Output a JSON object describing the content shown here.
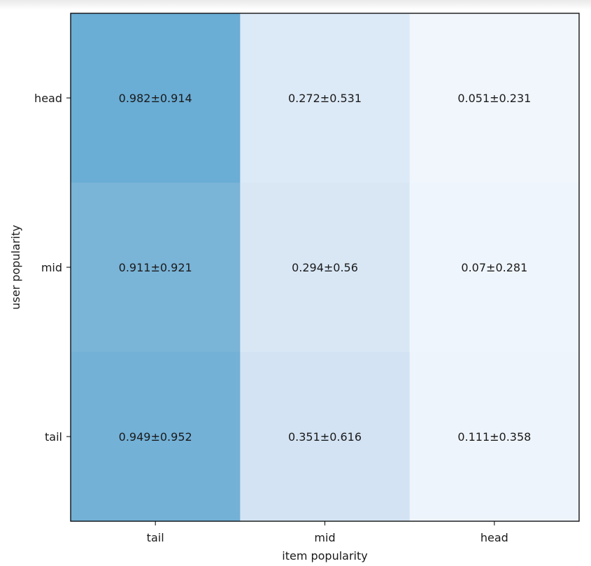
{
  "chart_data": {
    "type": "heatmap",
    "title": "",
    "xlabel": "item popularity",
    "ylabel": "user popularity",
    "x_categories": [
      "tail",
      "mid",
      "head"
    ],
    "y_categories": [
      "head",
      "mid",
      "tail"
    ],
    "values": [
      [
        0.982,
        0.272,
        0.051
      ],
      [
        0.911,
        0.294,
        0.07
      ],
      [
        0.949,
        0.351,
        0.111
      ]
    ],
    "errors": [
      [
        0.914,
        0.531,
        0.231
      ],
      [
        0.921,
        0.56,
        0.281
      ],
      [
        0.952,
        0.616,
        0.358
      ]
    ],
    "cell_labels": [
      [
        "0.982±0.914",
        "0.272±0.531",
        "0.051±0.231"
      ],
      [
        "0.911±0.921",
        "0.294±0.56",
        "0.07±0.281"
      ],
      [
        "0.949±0.952",
        "0.351±0.616",
        "0.111±0.358"
      ]
    ],
    "cell_colors": [
      [
        "#6aadd5",
        "#dce9f6",
        "#f1f6fd"
      ],
      [
        "#7ab4d7",
        "#d9e7f5",
        "#eff5fc"
      ],
      [
        "#73b1d7",
        "#d3e3f3",
        "#eef4fc"
      ]
    ],
    "colormap": "Blues",
    "grid": false
  }
}
